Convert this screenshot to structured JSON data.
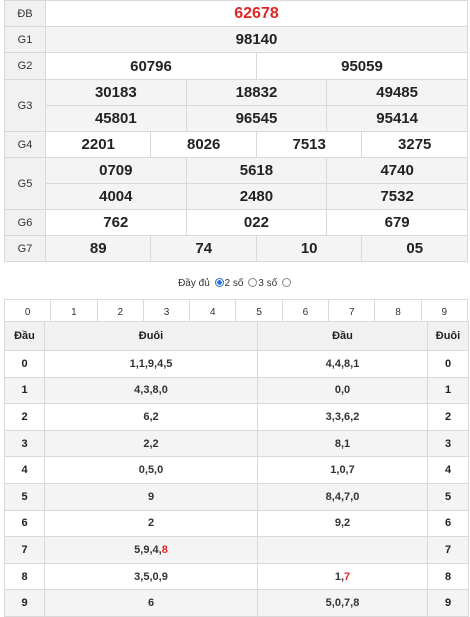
{
  "results": {
    "db": {
      "label": "ĐB",
      "numbers": [
        "62678"
      ]
    },
    "g1": {
      "label": "G1",
      "numbers": [
        "98140"
      ]
    },
    "g2": {
      "label": "G2",
      "numbers": [
        "60796",
        "95059"
      ]
    },
    "g3": {
      "label": "G3",
      "numbers": [
        "30183",
        "18832",
        "49485",
        "45801",
        "96545",
        "95414"
      ]
    },
    "g4": {
      "label": "G4",
      "numbers": [
        "2201",
        "8026",
        "7513",
        "3275"
      ]
    },
    "g5": {
      "label": "G5",
      "numbers": [
        "0709",
        "5618",
        "4740",
        "4004",
        "2480",
        "7532"
      ]
    },
    "g6": {
      "label": "G6",
      "numbers": [
        "762",
        "022",
        "679"
      ]
    },
    "g7": {
      "label": "G7",
      "numbers": [
        "89",
        "74",
        "10",
        "05"
      ]
    }
  },
  "options": {
    "full": "Đầy đủ",
    "two": "2 số",
    "three": "3 số",
    "selected": "two"
  },
  "digits": [
    "0",
    "1",
    "2",
    "3",
    "4",
    "5",
    "6",
    "7",
    "8",
    "9"
  ],
  "headtail": {
    "headers": {
      "dau": "Đầu",
      "duoi": "Đuôi",
      "dau2": "Đầu",
      "duoi2": "Đuôi"
    },
    "rows": [
      {
        "d": "0",
        "tail": "1,1,9,4,5",
        "head": "4,4,8,1"
      },
      {
        "d": "1",
        "tail": "4,3,8,0",
        "head": "0,0"
      },
      {
        "d": "2",
        "tail": "6,2",
        "head": "3,3,6,2"
      },
      {
        "d": "3",
        "tail": "2,2",
        "head": "8,1"
      },
      {
        "d": "4",
        "tail": "0,5,0",
        "head": "1,0,7"
      },
      {
        "d": "5",
        "tail": "9",
        "head": "8,4,7,0"
      },
      {
        "d": "6",
        "tail": "2",
        "head": "9,2"
      },
      {
        "d": "7",
        "tail_pre": "5,9,4,",
        "tail_hl": "8",
        "head": ""
      },
      {
        "d": "8",
        "tail": "3,5,0,9",
        "head_pre": "1,",
        "head_hl": "7"
      },
      {
        "d": "9",
        "tail": "6",
        "head": "5,0,7,8"
      }
    ]
  },
  "colors": {
    "special": "#e02626",
    "accent": "#2a6fdb"
  }
}
